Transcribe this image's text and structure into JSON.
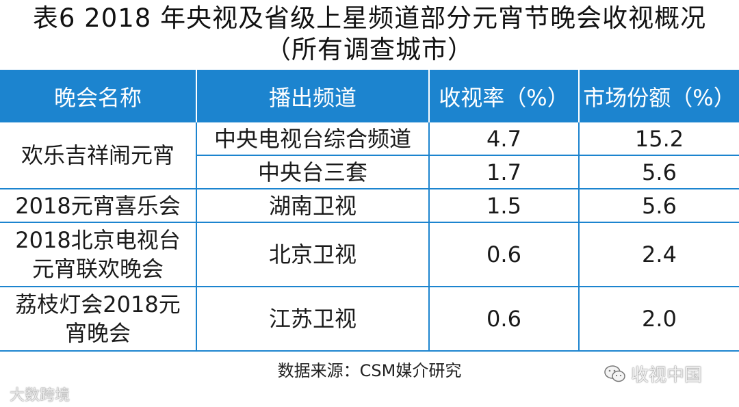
{
  "title": {
    "line1": "表6  2018 年央视及省级上星频道部分元宵节晚会收视概况",
    "line2": "（所有调查城市）"
  },
  "table": {
    "headers": [
      "晚会名称",
      "播出频道",
      "收视率（%）",
      "市场份额（%）"
    ],
    "rows": [
      {
        "name_line1": "欢乐吉祥闹元宵",
        "name_line2": "",
        "channel": "中央电视台综合频道",
        "rating": "4.7",
        "share": "15.2"
      },
      {
        "channel": "中央台三套",
        "rating": "1.7",
        "share": "5.6"
      },
      {
        "name_line1": "2018元宵喜乐会",
        "name_line2": "",
        "channel": "湖南卫视",
        "rating": "1.5",
        "share": "5.6"
      },
      {
        "name_line1": "2018北京电视台",
        "name_line2": "元宵联欢晚会",
        "channel": "北京卫视",
        "rating": "0.6",
        "share": "2.4"
      },
      {
        "name_line1": "荔枝灯会2018元",
        "name_line2": "宵晚会",
        "channel": "江苏卫视",
        "rating": "0.6",
        "share": "2.0"
      }
    ]
  },
  "source": "数据来源：CSM媒介研究",
  "watermarks": {
    "left": "大数跨境",
    "right": "收视中国"
  },
  "colors": {
    "header_bg": "#1c84cf",
    "header_text": "#ffffff",
    "border": "#1c84cf"
  }
}
